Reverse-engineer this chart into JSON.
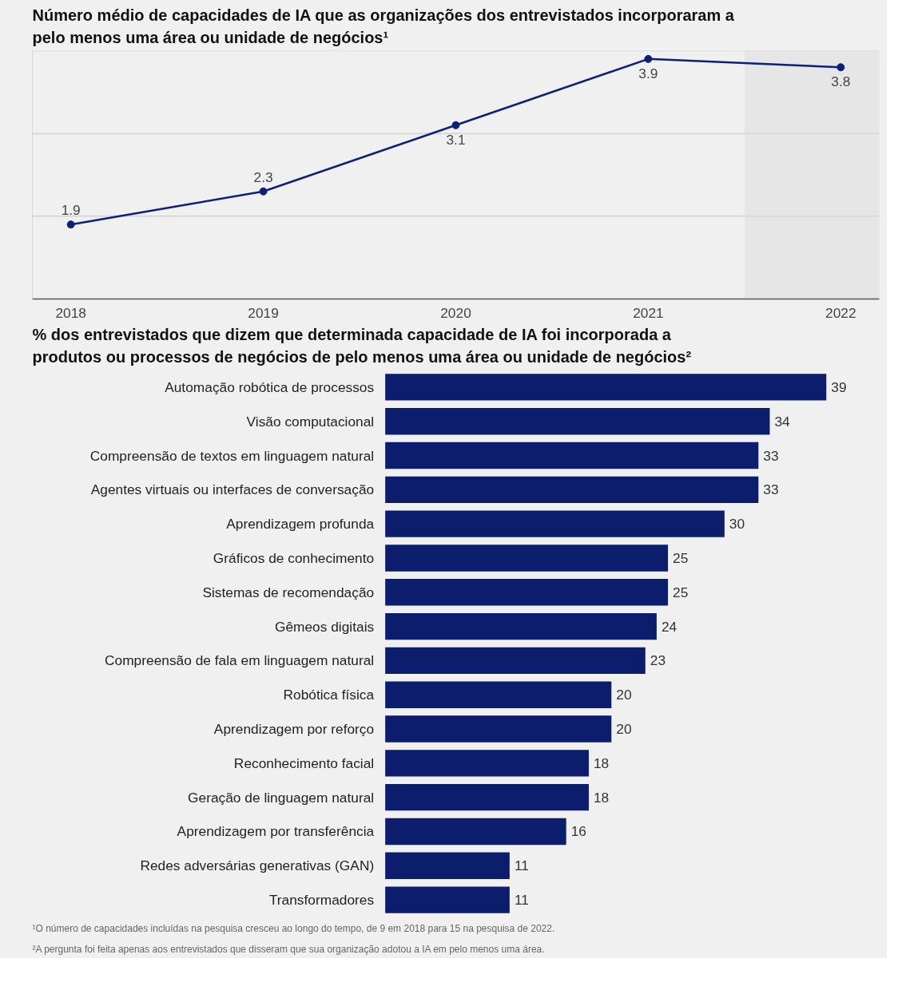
{
  "chart_data": [
    {
      "type": "line",
      "title": "Número médio de capacidades de IA que as organizações dos entrevistados incorporaram a pelo menos uma área ou unidade de negócios¹",
      "categories": [
        "2018",
        "2019",
        "2020",
        "2021",
        "2022"
      ],
      "series": [
        {
          "color": "#0d1f78",
          "values": [
            1.9,
            2.3,
            3.1,
            3.9,
            3.8
          ]
        }
      ],
      "ylim": [
        1,
        4
      ],
      "yticks": [
        {
          "value": 2,
          "label": null
        },
        {
          "value": 3,
          "label": null
        },
        {
          "value": 4,
          "label": null
        }
      ],
      "tick_labels": "x",
      "grid": "y",
      "marker": "circle",
      "line_style": "solid",
      "data_labels": true,
      "bands": [
        {
          "axis": "x",
          "from": "2022",
          "to": "2022",
          "color": "#e6e6e6"
        }
      ]
    },
    {
      "type": "bar",
      "orientation": "horizontal",
      "title": "% dos entrevistados que dizem que determinada capacidade de IA foi incorporada a produtos ou processos de negócios de pelo menos uma área ou unidade de negócios²",
      "categories": [
        "Automação robótica de processos",
        "Visão computacional",
        "Compreensão de textos em linguagem natural",
        "Agentes virtuais ou interfaces de conversação",
        "Aprendizagem profunda",
        "Gráficos de conhecimento",
        "Sistemas de recomendação",
        "Gêmeos digitais",
        "Compreensão de fala em linguagem natural",
        "Robótica física",
        "Aprendizagem por reforço",
        "Reconhecimento facial",
        "Geração de linguagem natural",
        "Aprendizagem por transferência",
        "Redes adversárias generativas (GAN)",
        "Transformadores"
      ],
      "values": [
        39,
        34,
        33,
        33,
        30,
        25,
        25,
        24,
        23,
        20,
        20,
        18,
        18,
        16,
        11,
        11
      ],
      "color": "#0c1d6e",
      "data_labels": true,
      "grid": false,
      "annotations": [
        "¹O número de capacidades incluídas na pesquisa cresceu ao longo do tempo, de 9 em 2018 para 15 na pesquisa de 2022.",
        "²A pergunta foi feita apenas aos entrevistados que disseram que sua organização adotou a IA em pelo menos uma área."
      ]
    }
  ]
}
